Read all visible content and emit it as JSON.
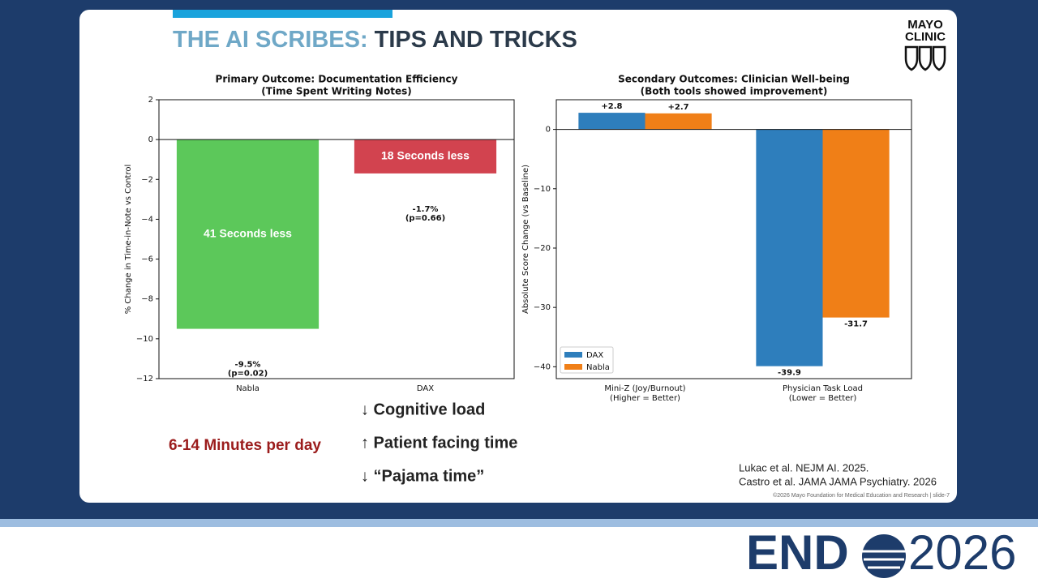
{
  "slide": {
    "title_accent": "THE AI SCRIBES:",
    "title_main": "TIPS AND TRICKS",
    "logo_line1": "MAYO",
    "logo_line2": "CLINIC",
    "highlight": "6-14 Minutes per day",
    "bullets": [
      "↓ Cognitive load",
      "↑ Patient facing time",
      "↓ “Pajama time”"
    ],
    "references": [
      "Lukac et al. NEJM AI. 2025.",
      "Castro et al. JAMA JAMA Psychiatry. 2026"
    ],
    "footer": "©2026 Mayo Foundation for Medical Education and Research  |  slide-7",
    "brand_left": "END",
    "brand_right": "2026"
  },
  "chart_data": [
    {
      "type": "bar",
      "title": "Primary Outcome: Documentation Efficiency",
      "subtitle": "(Time Spent Writing Notes)",
      "ylabel": "% Change in Time-in-Note vs Control",
      "categories": [
        "Nabla",
        "DAX"
      ],
      "values": [
        -9.5,
        -1.7
      ],
      "value_labels": [
        "-9.5%",
        "-1.7%"
      ],
      "p_labels": [
        "(p=0.02)",
        "(p=0.66)"
      ],
      "bar_annotations": [
        "41 Seconds less",
        "18 Seconds less"
      ],
      "colors": [
        "#5cc85a",
        "#d2434f"
      ],
      "ylim": [
        -12,
        2
      ],
      "yticks": [
        {
          "value": -12,
          "label": "−12"
        },
        {
          "value": -10,
          "label": "−10"
        },
        {
          "value": -8,
          "label": "−8"
        },
        {
          "value": -6,
          "label": "−6"
        },
        {
          "value": -4,
          "label": "−4"
        },
        {
          "value": -2,
          "label": "−2"
        },
        0,
        2
      ]
    },
    {
      "type": "grouped-bar",
      "title": "Secondary Outcomes: Clinician Well-being",
      "subtitle": "(Both tools showed improvement)",
      "ylabel": "Absolute Score Change (vs Baseline)",
      "categories": [
        "Mini-Z (Joy/Burnout)",
        "Physician Task Load"
      ],
      "category_notes": [
        "(Higher = Better)",
        "(Lower = Better)"
      ],
      "series": [
        {
          "name": "DAX",
          "color": "#2e7ebc",
          "values": [
            2.8,
            -39.9
          ],
          "value_labels": [
            "+2.8",
            "-39.9"
          ]
        },
        {
          "name": "Nabla",
          "color": "#f07f17",
          "values": [
            2.7,
            -31.7
          ],
          "value_labels": [
            "+2.7",
            "-31.7"
          ]
        }
      ],
      "ylim": [
        -42,
        5
      ],
      "yticks": [
        {
          "value": -40,
          "label": "−40"
        },
        {
          "value": -30,
          "label": "−30"
        },
        {
          "value": -20,
          "label": "−20"
        },
        {
          "value": -10,
          "label": "−10"
        },
        0
      ],
      "legend": "lower left"
    }
  ]
}
